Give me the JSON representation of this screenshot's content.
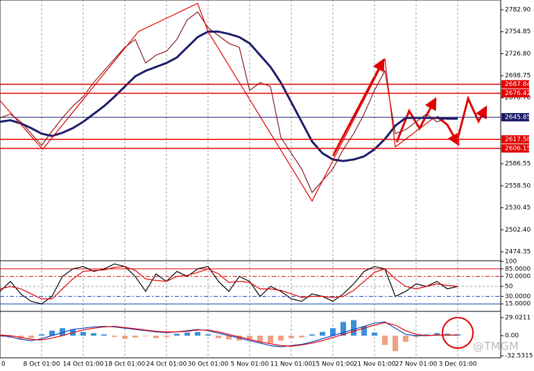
{
  "watermark": "@TMGM",
  "chart_data": [
    {
      "type": "line",
      "x": [
        0,
        1,
        2,
        3,
        4,
        5,
        6,
        7,
        8,
        9,
        10,
        11,
        12,
        13,
        14,
        15,
        16,
        17,
        18,
        19,
        20,
        21,
        22,
        23,
        24,
        25,
        26,
        27,
        28,
        29,
        30,
        31,
        32,
        33,
        34,
        35,
        36,
        37,
        38,
        39,
        40,
        41,
        42,
        43,
        44
      ],
      "xlim": [
        0,
        48
      ],
      "xticks": [
        {
          "value": 0,
          "label": "0"
        },
        {
          "value": 4,
          "label": "8 Oct 01:00"
        },
        {
          "value": 8,
          "label": "14 Oct 01:00"
        },
        {
          "value": 12,
          "label": "18 Oct 01:00"
        },
        {
          "value": 16,
          "label": "24 Oct 01:00"
        },
        {
          "value": 20,
          "label": "30 Oct 01:00"
        },
        {
          "value": 24,
          "label": "5 Nov 01:00"
        },
        {
          "value": 28,
          "label": "11 Nov 01:00"
        },
        {
          "value": 32,
          "label": "15 Nov 01:00"
        },
        {
          "value": 36,
          "label": "21 Nov 01:00"
        },
        {
          "value": 40,
          "label": "27 Nov 01:00"
        },
        {
          "value": 44,
          "label": "3 Dec 01:00"
        }
      ],
      "ylim": [
        2463.85,
        2795.27
      ],
      "yticks": [
        {
          "value": 2782.9,
          "label": "2782.90"
        },
        2754.85,
        {
          "value": 2726.8,
          "label": "2726.80"
        },
        2698.75,
        {
          "value": 2670.7,
          "label": "2670.70"
        },
        2586.55,
        {
          "value": 2558.5,
          "label": "2558.50"
        },
        2530.45,
        {
          "value": 2502.4,
          "label": "2502.40"
        },
        2474.35
      ],
      "grid": true,
      "series": [
        {
          "color": "#8b1a1a",
          "values": [
            2645,
            2650,
            2640,
            2625,
            2610,
            2628,
            2645,
            2660,
            2672,
            2690,
            2705,
            2720,
            2735,
            2745,
            2715,
            2725,
            2730,
            2745,
            2770,
            2780,
            2760,
            2750,
            2740,
            2735,
            2680,
            2690,
            2685,
            2620,
            2600,
            2580,
            2550,
            2565,
            2580,
            2605,
            2625,
            2650,
            2680,
            2705,
            2625,
            2630,
            2640,
            2650,
            2640,
            2645,
            2646
          ]
        },
        {
          "color": "#1c1c6b",
          "values": [
            2640,
            2642,
            2638,
            2632,
            2625,
            2622,
            2626,
            2632,
            2640,
            2650,
            2660,
            2672,
            2685,
            2698,
            2705,
            2710,
            2715,
            2722,
            2735,
            2748,
            2755,
            2755,
            2752,
            2748,
            2740,
            2725,
            2710,
            2690,
            2665,
            2640,
            2615,
            2600,
            2592,
            2590,
            2592,
            2596,
            2605,
            2618,
            2635,
            2645,
            2645,
            2645,
            2645,
            2644,
            2644
          ]
        }
      ],
      "zigzag": {
        "color": "#e00000",
        "x": [
          0,
          4.1,
          13.3,
          19,
          20,
          30,
          37,
          38,
          41.7
        ],
        "values": [
          2667,
          2605,
          2755,
          2791,
          2755,
          2539,
          2720,
          2608,
          2645
        ]
      },
      "level_color": "#e00000",
      "levels": [
        2687.84,
        2676.42,
        2617.58,
        2606.15
      ],
      "current": 2645.85,
      "current_color": "#1c1c6b"
    },
    {
      "type": "line",
      "ylim": [
        0,
        100
      ],
      "yticks": [
        100,
        {
          "value": 85,
          "label": "85.0000"
        },
        {
          "value": 70,
          "label": "70.0000"
        },
        50,
        {
          "value": 30,
          "label": "30.0000"
        },
        {
          "value": 15,
          "label": "15.0000"
        }
      ],
      "series": [
        {
          "color": "#000000",
          "values": [
            40,
            60,
            35,
            20,
            15,
            30,
            70,
            85,
            90,
            80,
            85,
            95,
            90,
            70,
            40,
            75,
            60,
            80,
            70,
            85,
            90,
            60,
            40,
            70,
            60,
            30,
            50,
            40,
            25,
            20,
            35,
            30,
            20,
            35,
            55,
            80,
            90,
            85,
            30,
            40,
            55,
            50,
            60,
            45,
            50
          ]
        },
        {
          "color": "#e00000",
          "values": [
            45,
            50,
            45,
            35,
            25,
            25,
            45,
            65,
            80,
            82,
            83,
            88,
            90,
            82,
            65,
            62,
            60,
            70,
            72,
            78,
            85,
            75,
            58,
            60,
            58,
            45,
            45,
            42,
            35,
            28,
            30,
            30,
            28,
            30,
            42,
            60,
            78,
            85,
            65,
            50,
            45,
            50,
            55,
            52,
            50
          ]
        }
      ]
    },
    {
      "type": "bar",
      "ylim": [
        -35.7,
        37.95
      ],
      "yticks": [
        29.0211,
        {
          "value": 0,
          "label": "0.00"
        },
        -32.5315
      ],
      "up_color": "#3a8fd9",
      "down_color": "#f0a080",
      "values": [
        -2,
        -3,
        -5,
        -4,
        2,
        8,
        12,
        10,
        6,
        4,
        2,
        -2,
        -5,
        -3,
        -1,
        -4,
        -2,
        3,
        5,
        6,
        2,
        -4,
        -6,
        -8,
        -5,
        -10,
        -12,
        -8,
        -4,
        -3,
        2,
        6,
        12,
        22,
        25,
        15,
        5,
        -15,
        -25,
        -10,
        -2,
        2,
        4,
        3,
        2
      ],
      "series": [
        {
          "color": "#1040c0",
          "values": [
            0,
            -2,
            -6,
            -8,
            -5,
            0,
            5,
            10,
            12,
            14,
            15,
            14,
            12,
            10,
            8,
            6,
            5,
            6,
            8,
            10,
            8,
            4,
            0,
            -4,
            -8,
            -12,
            -16,
            -18,
            -16,
            -14,
            -10,
            -5,
            0,
            5,
            10,
            15,
            20,
            22,
            12,
            2,
            0,
            0,
            1,
            1,
            1
          ]
        },
        {
          "color": "#e00000",
          "values": [
            1,
            0,
            -3,
            -6,
            -7,
            -4,
            0,
            5,
            9,
            12,
            14,
            15,
            13,
            11,
            9,
            7,
            6,
            6,
            7,
            9,
            9,
            6,
            2,
            -2,
            -6,
            -10,
            -13,
            -16,
            -17,
            -15,
            -12,
            -8,
            -3,
            2,
            7,
            12,
            17,
            21,
            17,
            8,
            2,
            0,
            1,
            1,
            1
          ]
        }
      ]
    }
  ]
}
